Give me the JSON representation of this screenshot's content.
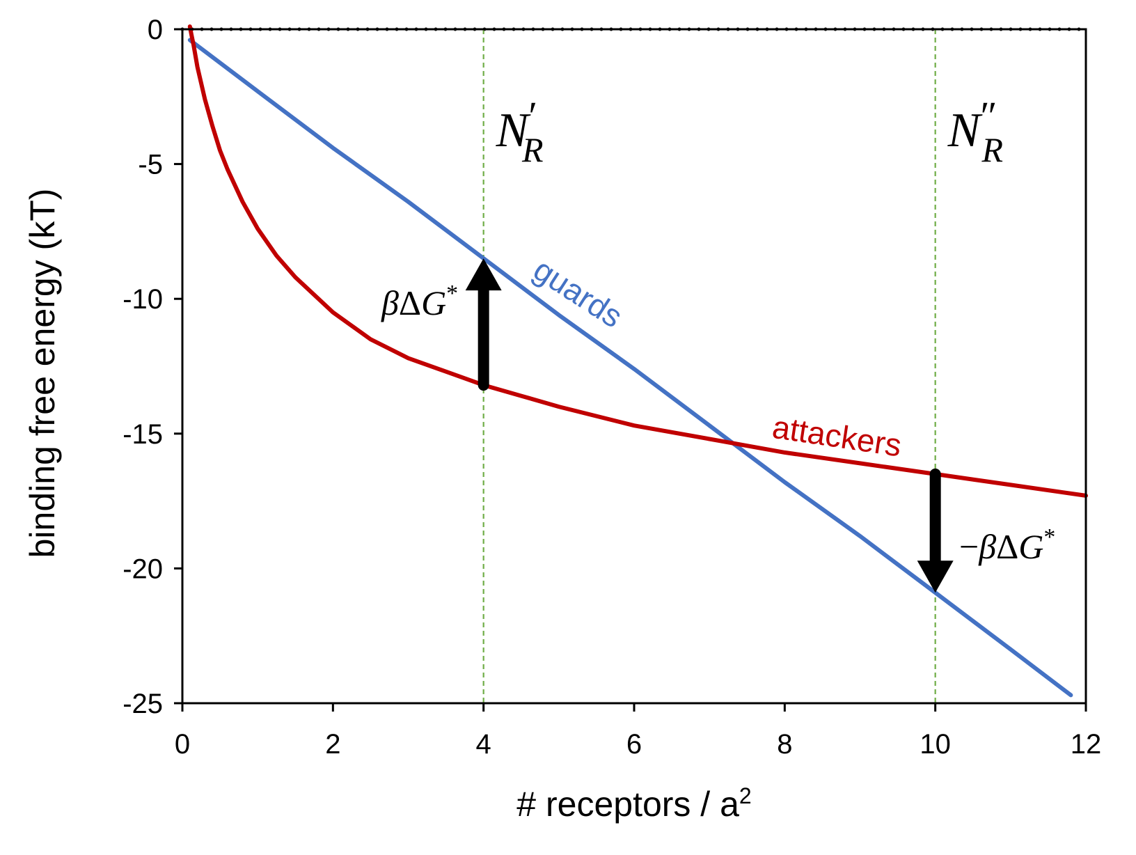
{
  "chart_data": {
    "type": "line",
    "xlabel": "# receptors / a",
    "xlabel_superscript": "2",
    "ylabel": "binding free energy (kT)",
    "xlim": [
      0,
      12
    ],
    "ylim": [
      -25,
      0
    ],
    "x_ticks": [
      "0",
      "2",
      "4",
      "6",
      "8",
      "10",
      "12"
    ],
    "y_ticks": [
      "0",
      "-5",
      "-10",
      "-15",
      "-20",
      "-25"
    ],
    "grid": false,
    "reference_line": {
      "y": 0,
      "style": "dotted",
      "color": "#000000"
    },
    "vertical_markers": [
      {
        "x": 4,
        "label_main": "N",
        "label_sub": "R",
        "label_prime": "′",
        "color": "#70ad47",
        "style": "dashed"
      },
      {
        "x": 10,
        "label_main": "N",
        "label_sub": "R",
        "label_prime": "″",
        "color": "#70ad47",
        "style": "dashed"
      }
    ],
    "series": [
      {
        "name": "guards",
        "color": "#4472c4",
        "x": [
          0.1,
          1,
          2,
          3,
          4,
          5,
          6,
          7,
          8,
          9,
          10,
          11,
          11.8
        ],
        "y": [
          -0.4,
          -2.3,
          -4.4,
          -6.4,
          -8.5,
          -10.6,
          -12.6,
          -14.7,
          -16.8,
          -18.8,
          -20.9,
          -23.0,
          -24.7
        ]
      },
      {
        "name": "attackers",
        "color": "#c00000",
        "x": [
          0.1,
          0.12,
          0.15,
          0.2,
          0.25,
          0.3,
          0.4,
          0.5,
          0.6,
          0.8,
          1.0,
          1.25,
          1.5,
          2,
          2.5,
          3,
          3.5,
          4,
          4.5,
          5,
          6,
          7,
          8,
          9,
          10,
          11,
          12
        ],
        "y": [
          0.1,
          -0.2,
          -0.6,
          -1.4,
          -2.0,
          -2.6,
          -3.6,
          -4.5,
          -5.2,
          -6.4,
          -7.4,
          -8.4,
          -9.2,
          -10.5,
          -11.5,
          -12.2,
          -12.7,
          -13.2,
          -13.6,
          -14.0,
          -14.7,
          -15.2,
          -15.7,
          -16.1,
          -16.5,
          -16.9,
          -17.3
        ]
      }
    ],
    "annotations": [
      {
        "text_greek": "β",
        "text_delta": "Δ",
        "text_var": "G",
        "text_sup": "*",
        "sign": "",
        "x_from": 4,
        "y_from": -13.2,
        "x_to": 4,
        "y_to": -8.5,
        "direction": "up"
      },
      {
        "text_greek": "β",
        "text_delta": "Δ",
        "text_var": "G",
        "text_sup": "*",
        "sign": "−",
        "x_from": 10,
        "y_from": -16.5,
        "x_to": 10,
        "y_to": -20.9,
        "direction": "down"
      }
    ]
  }
}
